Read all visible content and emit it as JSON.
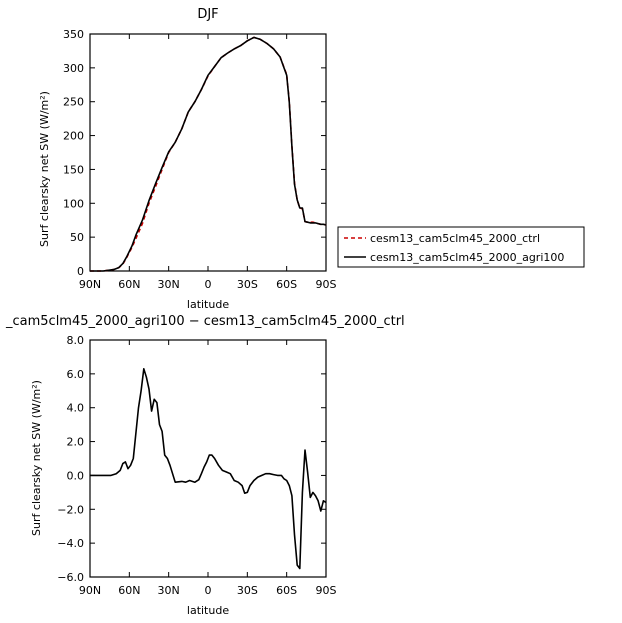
{
  "chart_data": [
    {
      "type": "line",
      "title": "DJF",
      "xlabel": "latitude",
      "ylabel": "Surf clearsky net SW (W/m²)",
      "xlim": [
        -90,
        90
      ],
      "ylim": [
        0,
        350
      ],
      "x_ticks": [
        -90,
        -60,
        -30,
        0,
        30,
        60,
        90
      ],
      "x_tick_labels": [
        "90N",
        "60N",
        "30N",
        "0",
        "30S",
        "60S",
        "90S"
      ],
      "y_ticks": [
        0,
        50,
        100,
        150,
        200,
        250,
        300,
        350
      ],
      "y_tick_labels": [
        "0",
        "50",
        "100",
        "150",
        "200",
        "250",
        "300",
        "350"
      ],
      "legend_position": "right",
      "series": [
        {
          "name": "cesm13_cam5clm45_2000_ctrl",
          "color": "#cc0000",
          "dash": "dashed",
          "x": [
            -90,
            -80,
            -72,
            -68,
            -65,
            -62,
            -58,
            -55,
            -50,
            -45,
            -40,
            -35,
            -30,
            -25,
            -20,
            -15,
            -10,
            -5,
            0,
            5,
            10,
            15,
            20,
            25,
            30,
            35,
            40,
            45,
            50,
            55,
            60,
            62,
            64,
            66,
            68,
            70,
            72,
            74,
            76,
            78,
            80,
            82,
            84,
            86,
            88,
            90
          ],
          "y": [
            0,
            0,
            2,
            5,
            10,
            20,
            35,
            48,
            70,
            100,
            125,
            150,
            175,
            190,
            210,
            235,
            250,
            268,
            288,
            302,
            315,
            322,
            328,
            333,
            340,
            345,
            342,
            336,
            328,
            316,
            290,
            250,
            185,
            130,
            105,
            93,
            92,
            73,
            72,
            72,
            72,
            71,
            70,
            69,
            69,
            68
          ]
        },
        {
          "name": "cesm13_cam5clm45_2000_agri100",
          "color": "#000000",
          "dash": "solid",
          "x": [
            -90,
            -80,
            -72,
            -68,
            -65,
            -62,
            -58,
            -55,
            -50,
            -45,
            -40,
            -35,
            -30,
            -25,
            -20,
            -15,
            -10,
            -5,
            0,
            5,
            10,
            15,
            20,
            25,
            30,
            35,
            40,
            45,
            50,
            55,
            60,
            62,
            64,
            66,
            68,
            70,
            72,
            74,
            76,
            78,
            80,
            82,
            84,
            86,
            88,
            90
          ],
          "y": [
            0,
            0,
            2,
            5,
            11,
            21,
            37,
            53,
            75,
            104,
            129,
            153,
            176,
            190,
            210,
            235,
            250,
            268,
            289,
            302,
            315,
            322,
            328,
            333,
            340,
            345,
            342,
            336,
            328,
            316,
            289,
            249,
            184,
            128,
            105,
            93,
            93,
            73,
            72,
            71,
            71,
            71,
            70,
            69,
            69,
            68
          ]
        }
      ]
    },
    {
      "type": "line",
      "title": "_cam5clm45_2000_agri100 − cesm13_cam5clm45_2000_ctrl",
      "xlabel": "latitude",
      "ylabel": "Surf clearsky net SW (W/m²)",
      "xlim": [
        -90,
        90
      ],
      "ylim": [
        -6,
        8
      ],
      "x_ticks": [
        -90,
        -60,
        -30,
        0,
        30,
        60,
        90
      ],
      "x_tick_labels": [
        "90N",
        "60N",
        "30N",
        "0",
        "30S",
        "60S",
        "90S"
      ],
      "y_ticks": [
        -6,
        -4,
        -2,
        0,
        2,
        4,
        6,
        8
      ],
      "y_tick_labels": [
        "−6.0",
        "−4.0",
        "−2.0",
        "0.0",
        "2.0",
        "4.0",
        "6.0",
        "8.0"
      ],
      "series": [
        {
          "color": "#000000",
          "dash": "solid",
          "x": [
            -90,
            -80,
            -74,
            -70,
            -67,
            -65,
            -63,
            -61,
            -59,
            -57,
            -55,
            -53,
            -51,
            -49,
            -47,
            -45,
            -43,
            -41,
            -39,
            -37,
            -35,
            -33,
            -31,
            -29,
            -25,
            -20,
            -17,
            -14,
            -10,
            -7,
            -5,
            -3,
            -1,
            1,
            3,
            5,
            8,
            11,
            14,
            17,
            20,
            23,
            26,
            28,
            30,
            32,
            35,
            38,
            41,
            44,
            47,
            50,
            53,
            56,
            58,
            60,
            62,
            64,
            66,
            68,
            70,
            72,
            74,
            76,
            78,
            80,
            82,
            84,
            86,
            88,
            90
          ],
          "y": [
            0,
            0,
            0,
            0.1,
            0.3,
            0.7,
            0.8,
            0.4,
            0.6,
            1.0,
            2.5,
            4.0,
            5.0,
            6.3,
            5.8,
            5.1,
            3.8,
            4.5,
            4.3,
            3.0,
            2.6,
            1.2,
            1.0,
            0.6,
            -0.4,
            -0.35,
            -0.4,
            -0.3,
            -0.4,
            -0.25,
            0.1,
            0.5,
            0.8,
            1.2,
            1.2,
            1.0,
            0.6,
            0.3,
            0.2,
            0.1,
            -0.3,
            -0.4,
            -0.6,
            -1.05,
            -1.0,
            -0.6,
            -0.3,
            -0.1,
            0.0,
            0.1,
            0.1,
            0.05,
            0.0,
            0.0,
            -0.2,
            -0.3,
            -0.6,
            -1.2,
            -3.5,
            -5.3,
            -5.5,
            -1.0,
            1.5,
            0.2,
            -1.3,
            -1.0,
            -1.2,
            -1.5,
            -2.1,
            -1.5,
            -1.6
          ]
        }
      ]
    }
  ],
  "legend": {
    "entries": [
      "cesm13_cam5clm45_2000_ctrl",
      "cesm13_cam5clm45_2000_agri100"
    ]
  }
}
